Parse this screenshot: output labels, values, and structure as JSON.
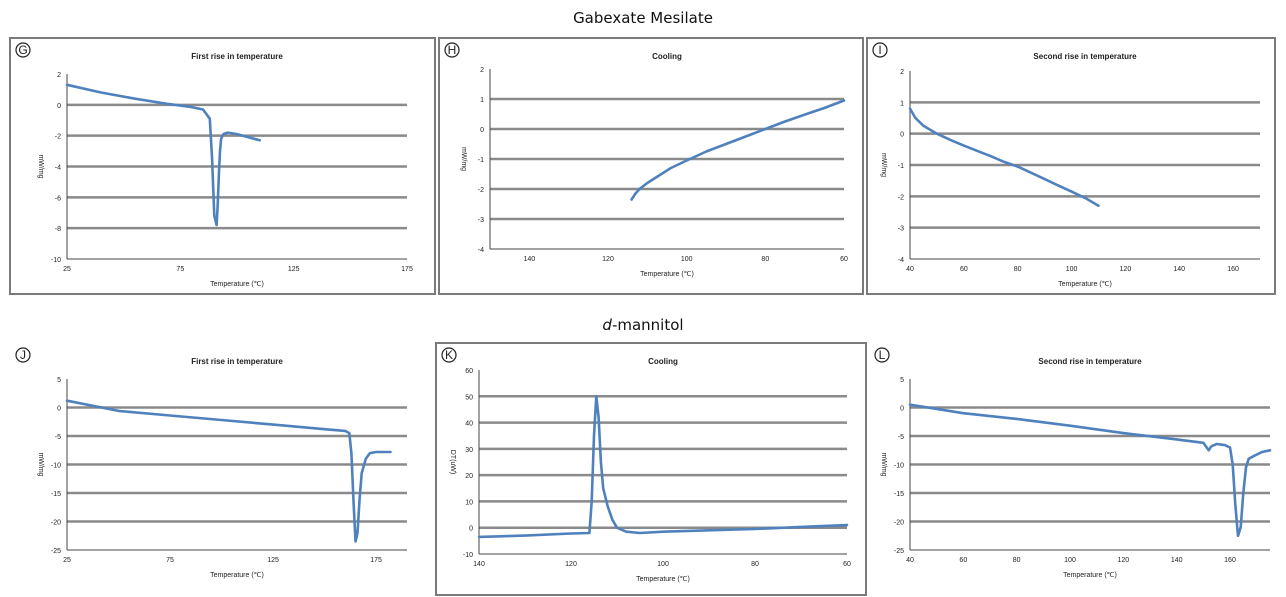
{
  "figure": {
    "section_titles": [
      "Gabexate Mesilate",
      "-mannitol"
    ],
    "section_title_italic_prefix": [
      "",
      "d"
    ]
  },
  "chart_data": [
    {
      "id": "G",
      "type": "line",
      "title": "First rise in temperature",
      "xlabel": "Temperature (℃)",
      "ylabel": "mW/mg",
      "xlim": [
        25,
        175
      ],
      "ylim": [
        -10,
        2
      ],
      "xticks": [
        25,
        75,
        125,
        175
      ],
      "yticks": [
        2,
        0,
        -2,
        -4,
        -6,
        -8,
        -10
      ],
      "xtick_labels": [
        "25",
        "75",
        "125",
        "175"
      ],
      "ytick_labels": [
        "2",
        "0",
        "-2",
        "-4",
        "-6",
        "-8",
        "-10"
      ],
      "x_reversed": false,
      "grid": true,
      "x": [
        25,
        40,
        55,
        70,
        80,
        85,
        88,
        89,
        90,
        91,
        91.5,
        92,
        92.5,
        93,
        94,
        96,
        100,
        105,
        110
      ],
      "y": [
        1.3,
        0.8,
        0.4,
        0.05,
        -0.15,
        -0.3,
        -0.9,
        -3.5,
        -7.2,
        -7.8,
        -6.5,
        -4.5,
        -3.0,
        -2.2,
        -1.9,
        -1.8,
        -1.9,
        -2.1,
        -2.3
      ]
    },
    {
      "id": "H",
      "type": "line",
      "title": "Cooling",
      "xlabel": "Temperature (℃)",
      "ylabel": "mW/mg",
      "xlim": [
        150,
        60
      ],
      "ylim": [
        -4,
        2
      ],
      "xticks": [
        140,
        120,
        100,
        80,
        60
      ],
      "yticks": [
        2,
        1,
        0,
        -1,
        -2,
        -3,
        -4
      ],
      "xtick_labels": [
        "140",
        "120",
        "100",
        "80",
        "60"
      ],
      "ytick_labels": [
        "2",
        "1",
        "0",
        "-1",
        "-2",
        "-3",
        "-4"
      ],
      "x_reversed": true,
      "grid": true,
      "x": [
        114,
        113,
        112,
        110,
        107,
        104,
        100,
        95,
        90,
        85,
        80,
        75,
        70,
        65,
        60
      ],
      "y": [
        -2.35,
        -2.15,
        -2.0,
        -1.8,
        -1.55,
        -1.3,
        -1.05,
        -0.75,
        -0.5,
        -0.25,
        0.0,
        0.25,
        0.48,
        0.7,
        0.95
      ]
    },
    {
      "id": "I",
      "type": "line",
      "title": "Second rise in temperature",
      "xlabel": "Temperature (℃)",
      "ylabel": "mW/mg",
      "xlim": [
        40,
        170
      ],
      "ylim": [
        -4,
        2
      ],
      "xticks": [
        40,
        60,
        80,
        100,
        120,
        140,
        160
      ],
      "yticks": [
        2,
        1,
        0,
        -1,
        -2,
        -3,
        -4
      ],
      "xtick_labels": [
        "40",
        "60",
        "80",
        "100",
        "120",
        "140",
        "160"
      ],
      "ytick_labels": [
        "2",
        "1",
        "0",
        "-1",
        "-2",
        "-3",
        "-4"
      ],
      "x_reversed": false,
      "grid": true,
      "x": [
        40,
        42,
        45,
        50,
        55,
        60,
        65,
        70,
        75,
        80,
        85,
        90,
        95,
        100,
        105,
        110
      ],
      "y": [
        0.8,
        0.5,
        0.25,
        0.0,
        -0.2,
        -0.38,
        -0.55,
        -0.72,
        -0.9,
        -1.05,
        -1.25,
        -1.45,
        -1.65,
        -1.85,
        -2.05,
        -2.3
      ]
    },
    {
      "id": "J",
      "type": "line",
      "title": "First rise in temperature",
      "xlabel": "Temperature (℃)",
      "ylabel": "mW/mg",
      "xlim": [
        25,
        190
      ],
      "ylim": [
        -25,
        5
      ],
      "xticks": [
        25,
        75,
        125,
        175
      ],
      "yticks": [
        5,
        0,
        -5,
        -10,
        -15,
        -20,
        -25
      ],
      "xtick_labels": [
        "25",
        "75",
        "125",
        "175"
      ],
      "ytick_labels": [
        "5",
        "0",
        "-5",
        "-10",
        "-15",
        "-20",
        "-25"
      ],
      "x_reversed": false,
      "grid": true,
      "x": [
        25,
        50,
        75,
        100,
        125,
        150,
        160,
        162,
        163,
        164,
        165,
        166,
        167,
        168,
        170,
        172,
        175,
        178,
        182
      ],
      "y": [
        1.2,
        -0.6,
        -1.4,
        -2.2,
        -3.0,
        -3.8,
        -4.1,
        -4.5,
        -8.0,
        -16.0,
        -23.5,
        -22.0,
        -16.0,
        -11.5,
        -9.0,
        -8.0,
        -7.8,
        -7.8,
        -7.8
      ]
    },
    {
      "id": "K",
      "type": "line",
      "title": "Cooling",
      "xlabel": "Temperature (℃)",
      "ylabel": "DT(uW)",
      "xlim": [
        140,
        60
      ],
      "ylim": [
        -10,
        60
      ],
      "xticks": [
        140,
        120,
        100,
        80,
        60
      ],
      "yticks": [
        60,
        50,
        40,
        30,
        20,
        10,
        0,
        -10
      ],
      "xtick_labels": [
        "140",
        "120",
        "100",
        "80",
        "60"
      ],
      "ytick_labels": [
        "60",
        "50",
        "40",
        "30",
        "20",
        "10",
        "0",
        "-10"
      ],
      "x_reversed": true,
      "grid": true,
      "x": [
        140,
        130,
        120,
        116,
        115.5,
        115,
        114.5,
        114,
        113.5,
        113,
        112,
        111,
        110,
        108,
        105,
        100,
        90,
        80,
        70,
        60
      ],
      "y": [
        -3.5,
        -3,
        -2.2,
        -2,
        10,
        35,
        50,
        42,
        25,
        15,
        8,
        3,
        0,
        -1.5,
        -2.0,
        -1.5,
        -1,
        -0.5,
        0.3,
        1
      ]
    },
    {
      "id": "L",
      "type": "line",
      "title": "Second rise in temperature",
      "xlabel": "Temperature (℃)",
      "ylabel": "mW/mg",
      "xlim": [
        40,
        175
      ],
      "ylim": [
        -25,
        5
      ],
      "xticks": [
        40,
        60,
        80,
        100,
        120,
        140,
        160
      ],
      "yticks": [
        5,
        0,
        -5,
        -10,
        -15,
        -20,
        -25
      ],
      "xtick_labels": [
        "40",
        "60",
        "80",
        "100",
        "120",
        "140",
        "160"
      ],
      "ytick_labels": [
        "5",
        "0",
        "-5",
        "-10",
        "-15",
        "-20",
        "-25"
      ],
      "x_reversed": false,
      "grid": true,
      "x": [
        40,
        60,
        80,
        100,
        120,
        140,
        150,
        152,
        153,
        155,
        158,
        160,
        161,
        162,
        163,
        164,
        165,
        166,
        167,
        169,
        172,
        175
      ],
      "y": [
        0.5,
        -1.0,
        -2.0,
        -3.2,
        -4.5,
        -5.6,
        -6.2,
        -7.5,
        -6.8,
        -6.4,
        -6.6,
        -7.0,
        -10.0,
        -17.0,
        -22.5,
        -21.0,
        -15.0,
        -10.5,
        -9.0,
        -8.5,
        -7.8,
        -7.5
      ]
    }
  ],
  "colors": {
    "series": "#4f81bd",
    "grid": "#8a8a8a",
    "border": "#7a7a7a"
  }
}
